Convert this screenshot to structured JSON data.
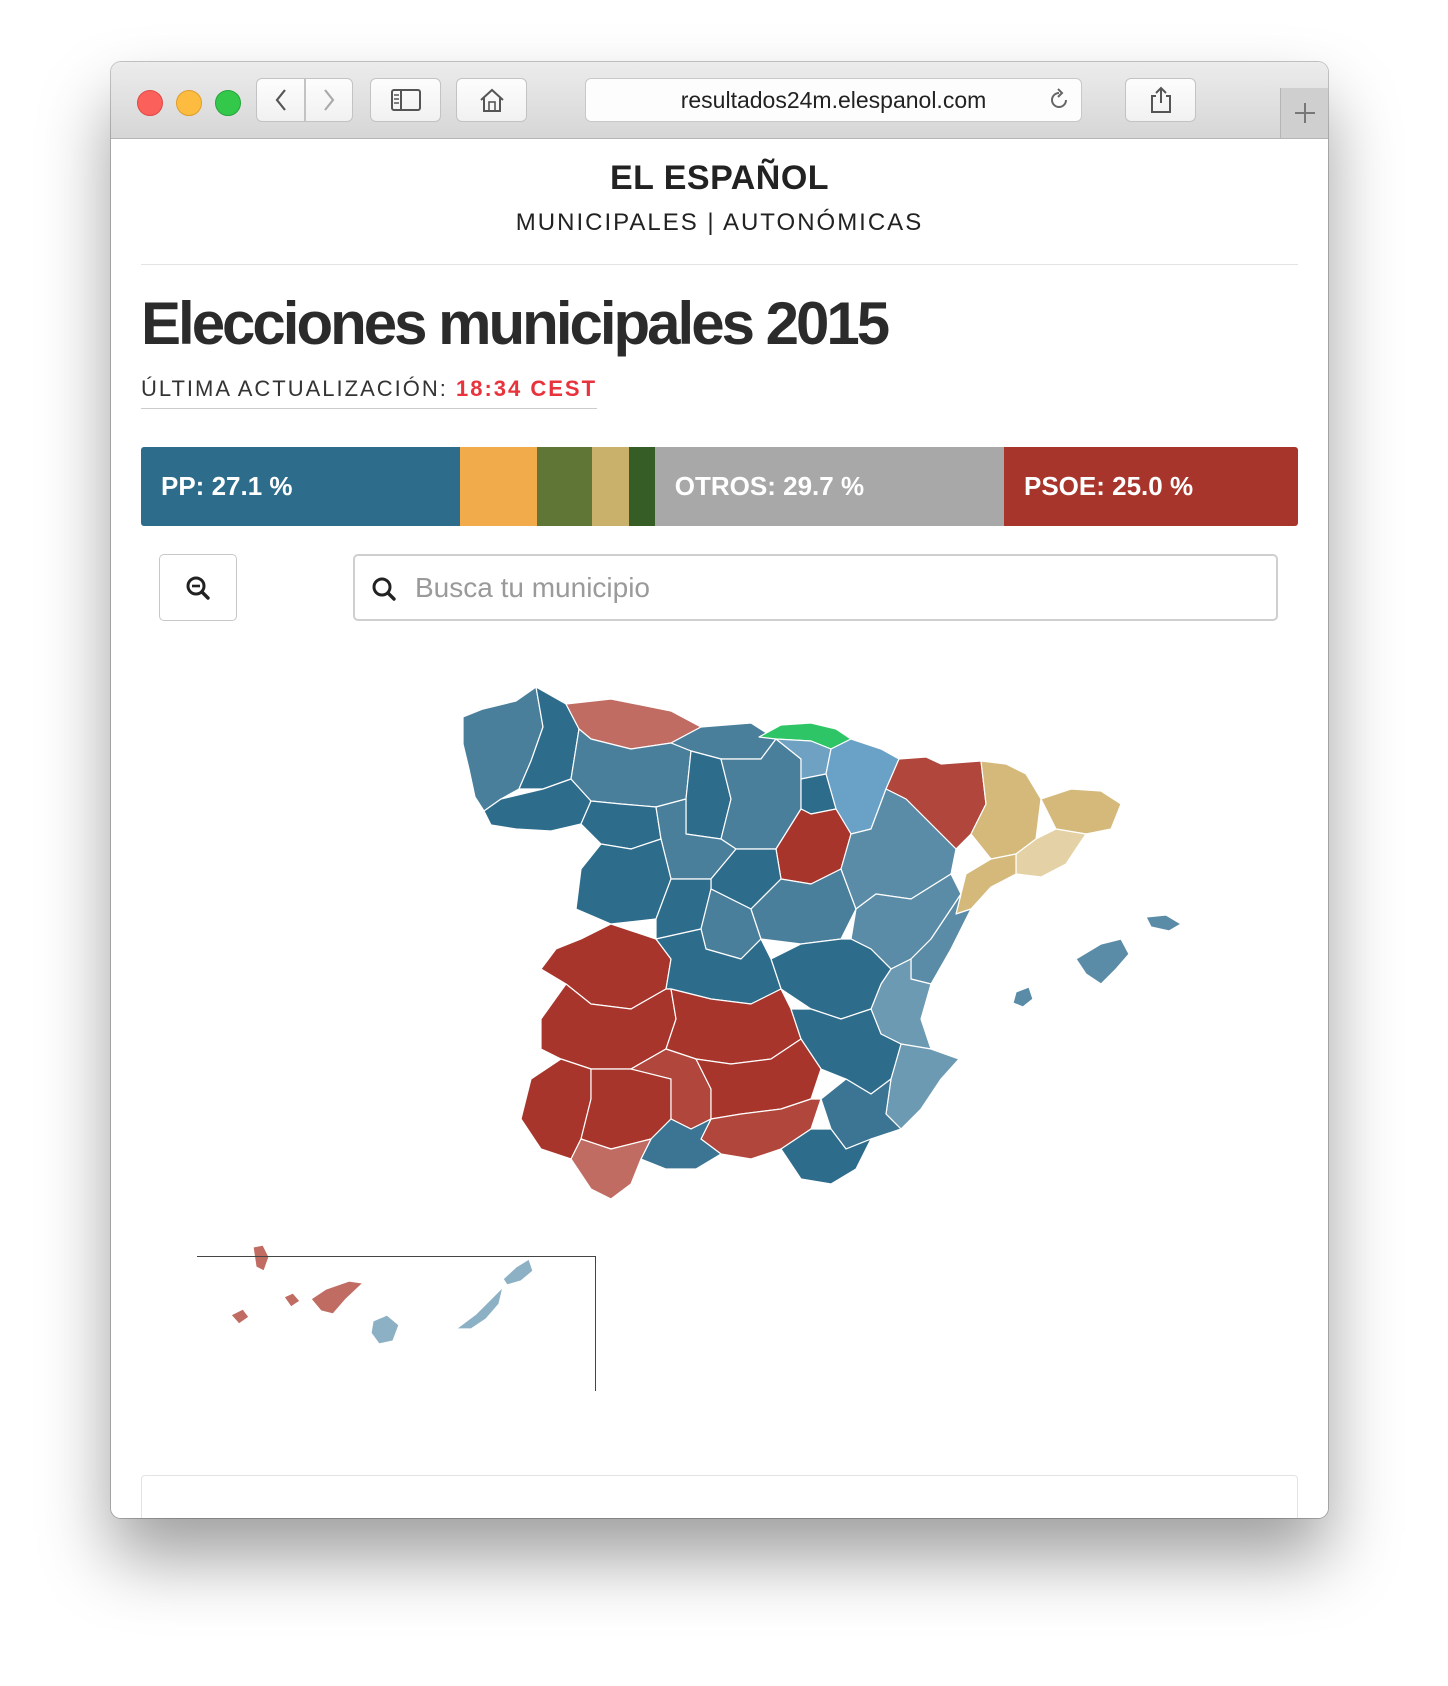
{
  "browser": {
    "url": "resultados24m.elespanol.com"
  },
  "header": {
    "brand": "EL ESPAÑOL",
    "nav": {
      "municipales": "MUNICIPALES",
      "separator": "|",
      "autonomicas": "AUTONÓMICAS"
    }
  },
  "main": {
    "title": "Elecciones municipales 2015",
    "updated_label": "ÚLTIMA ACTUALIZACIÓN:",
    "updated_time": "18:34 CEST"
  },
  "results_bar": {
    "segments": [
      {
        "party": "PP",
        "label": "PP: 27.1 %",
        "share": 27.1,
        "color": "#2e6c8c"
      },
      {
        "party": "",
        "label": "",
        "share": 6.6,
        "color": "#f1ab4b"
      },
      {
        "party": "",
        "label": "",
        "share": 4.7,
        "color": "#5f7637"
      },
      {
        "party": "",
        "label": "",
        "share": 3.1,
        "color": "#c9b06b"
      },
      {
        "party": "",
        "label": "",
        "share": 2.2,
        "color": "#355d25"
      },
      {
        "party": "OTROS",
        "label": "OTROS: 29.7 %",
        "share": 29.7,
        "color": "#a8a8a8"
      },
      {
        "party": "PSOE",
        "label": "PSOE: 25.0 %",
        "share": 25.0,
        "color": "#a8352b"
      }
    ]
  },
  "search": {
    "placeholder": "Busca tu municipio"
  },
  "icons": {
    "zoom": "zoom-out-icon",
    "search": "search-icon",
    "back": "chevron-left-icon",
    "forward": "chevron-right-icon",
    "sidebar": "sidebar-icon",
    "home": "home-icon",
    "reload": "reload-icon",
    "share": "share-icon",
    "new_tab": "plus-icon"
  },
  "colors": {
    "pp": "#2e6c8c",
    "psoe": "#a8352b",
    "otros": "#a8a8a8",
    "accent_time": "#e8323c"
  }
}
